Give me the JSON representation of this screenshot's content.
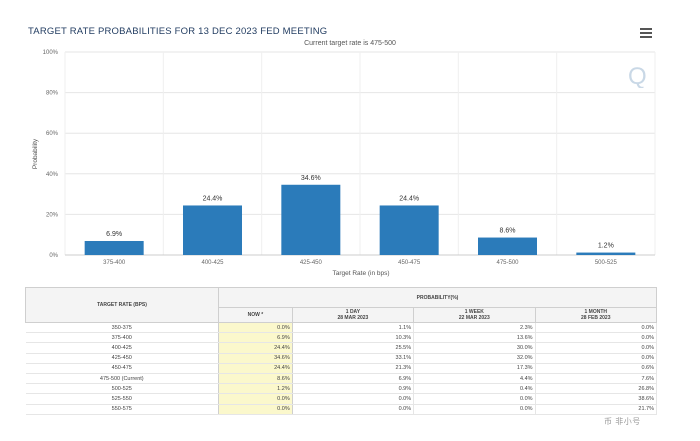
{
  "header": {
    "title": "TARGET RATE PROBABILITIES FOR 13 DEC 2023 FED MEETING",
    "subtitle": "Current target rate is 475-500",
    "menu_icon": "hamburger-menu-icon",
    "logo_icon": "cme-q-logo-icon",
    "logo_text": "Q"
  },
  "chart_data": {
    "type": "bar",
    "title": "TARGET RATE PROBABILITIES FOR 13 DEC 2023 FED MEETING",
    "subtitle": "Current target rate is 475-500",
    "categories": [
      "375-400",
      "400-425",
      "425-450",
      "450-475",
      "475-500",
      "500-525"
    ],
    "values": [
      6.9,
      24.4,
      34.6,
      24.4,
      8.6,
      1.2
    ],
    "data_labels": [
      "6.9%",
      "24.4%",
      "34.6%",
      "24.4%",
      "8.6%",
      "1.2%"
    ],
    "xlabel": "Target Rate (in bps)",
    "ylabel": "Probability",
    "ylim": [
      0,
      100
    ],
    "yticks": [
      0,
      20,
      40,
      60,
      80,
      100
    ],
    "ytick_labels": [
      "0%",
      "20%",
      "40%",
      "60%",
      "80%",
      "100%"
    ],
    "grid": true,
    "bar_color": "#2b7bba"
  },
  "table": {
    "rate_header": "TARGET RATE (BPS)",
    "prob_header": "PROBABILITY(%)",
    "columns": [
      {
        "line1": "NOW *",
        "line2": ""
      },
      {
        "line1": "1 DAY",
        "line2": "28 MAR 2023"
      },
      {
        "line1": "1 WEEK",
        "line2": "22 MAR 2023"
      },
      {
        "line1": "1 MONTH",
        "line2": "28 FEB 2023"
      }
    ],
    "rows": [
      {
        "rate": "350-375",
        "values": [
          "0.0%",
          "1.1%",
          "2.3%",
          "0.0%"
        ]
      },
      {
        "rate": "375-400",
        "values": [
          "6.9%",
          "10.3%",
          "13.6%",
          "0.0%"
        ]
      },
      {
        "rate": "400-425",
        "values": [
          "24.4%",
          "25.5%",
          "30.0%",
          "0.0%"
        ]
      },
      {
        "rate": "425-450",
        "values": [
          "34.6%",
          "33.1%",
          "32.0%",
          "0.0%"
        ]
      },
      {
        "rate": "450-475",
        "values": [
          "24.4%",
          "21.3%",
          "17.3%",
          "0.6%"
        ]
      },
      {
        "rate": "475-500 (Current)",
        "values": [
          "8.6%",
          "6.9%",
          "4.4%",
          "7.6%"
        ]
      },
      {
        "rate": "500-525",
        "values": [
          "1.2%",
          "0.9%",
          "0.4%",
          "26.8%"
        ]
      },
      {
        "rate": "525-550",
        "values": [
          "0.0%",
          "0.0%",
          "0.0%",
          "38.6%"
        ]
      },
      {
        "rate": "550-575",
        "values": [
          "0.0%",
          "0.0%",
          "0.0%",
          "21.7%"
        ]
      }
    ]
  },
  "footer": {
    "watermark": "币 非小号"
  }
}
